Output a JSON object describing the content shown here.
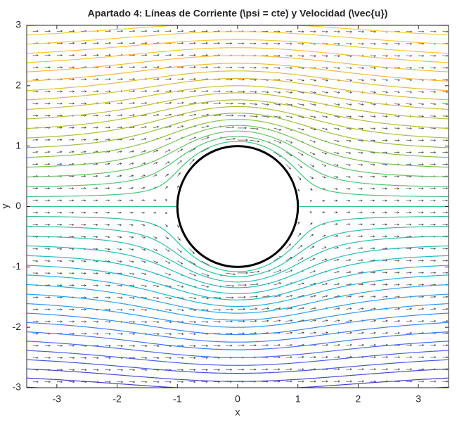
{
  "chart_data": {
    "type": "streamlines",
    "title": "Apartado 4: Líneas de Corriente (\\psi = cte) y Velocidad (\\vec{u})",
    "xlabel": "x",
    "ylabel": "y",
    "xlim": [
      -3.5,
      3.5
    ],
    "ylim": [
      -3,
      3
    ],
    "xticks": [
      -3,
      -2,
      -1,
      0,
      1,
      2,
      3
    ],
    "yticks": [
      -3,
      -2,
      -1,
      0,
      1,
      2,
      3
    ],
    "levels": [
      -3,
      -2.85,
      -2.7,
      -2.55,
      -2.4,
      -2.25,
      -2.1,
      -1.95,
      -1.8,
      -1.65,
      -1.5,
      -1.35,
      -1.2,
      -1.05,
      -0.9,
      -0.75,
      -0.6,
      -0.45,
      -0.3,
      -0.15,
      0,
      0.15,
      0.3,
      0.45,
      0.6,
      0.75,
      0.9,
      1.05,
      1.2,
      1.35,
      1.5,
      1.65,
      1.8,
      1.95,
      2.1,
      2.25,
      2.4,
      2.55,
      2.7,
      2.85,
      3
    ],
    "colormap": [
      "#3e26a8",
      "#4772fa",
      "#1fb5d6",
      "#36c58a",
      "#a5be36",
      "#f6b93a",
      "#f9d92c"
    ],
    "cylinder": {
      "radius": 1,
      "color": "#000000"
    }
  }
}
